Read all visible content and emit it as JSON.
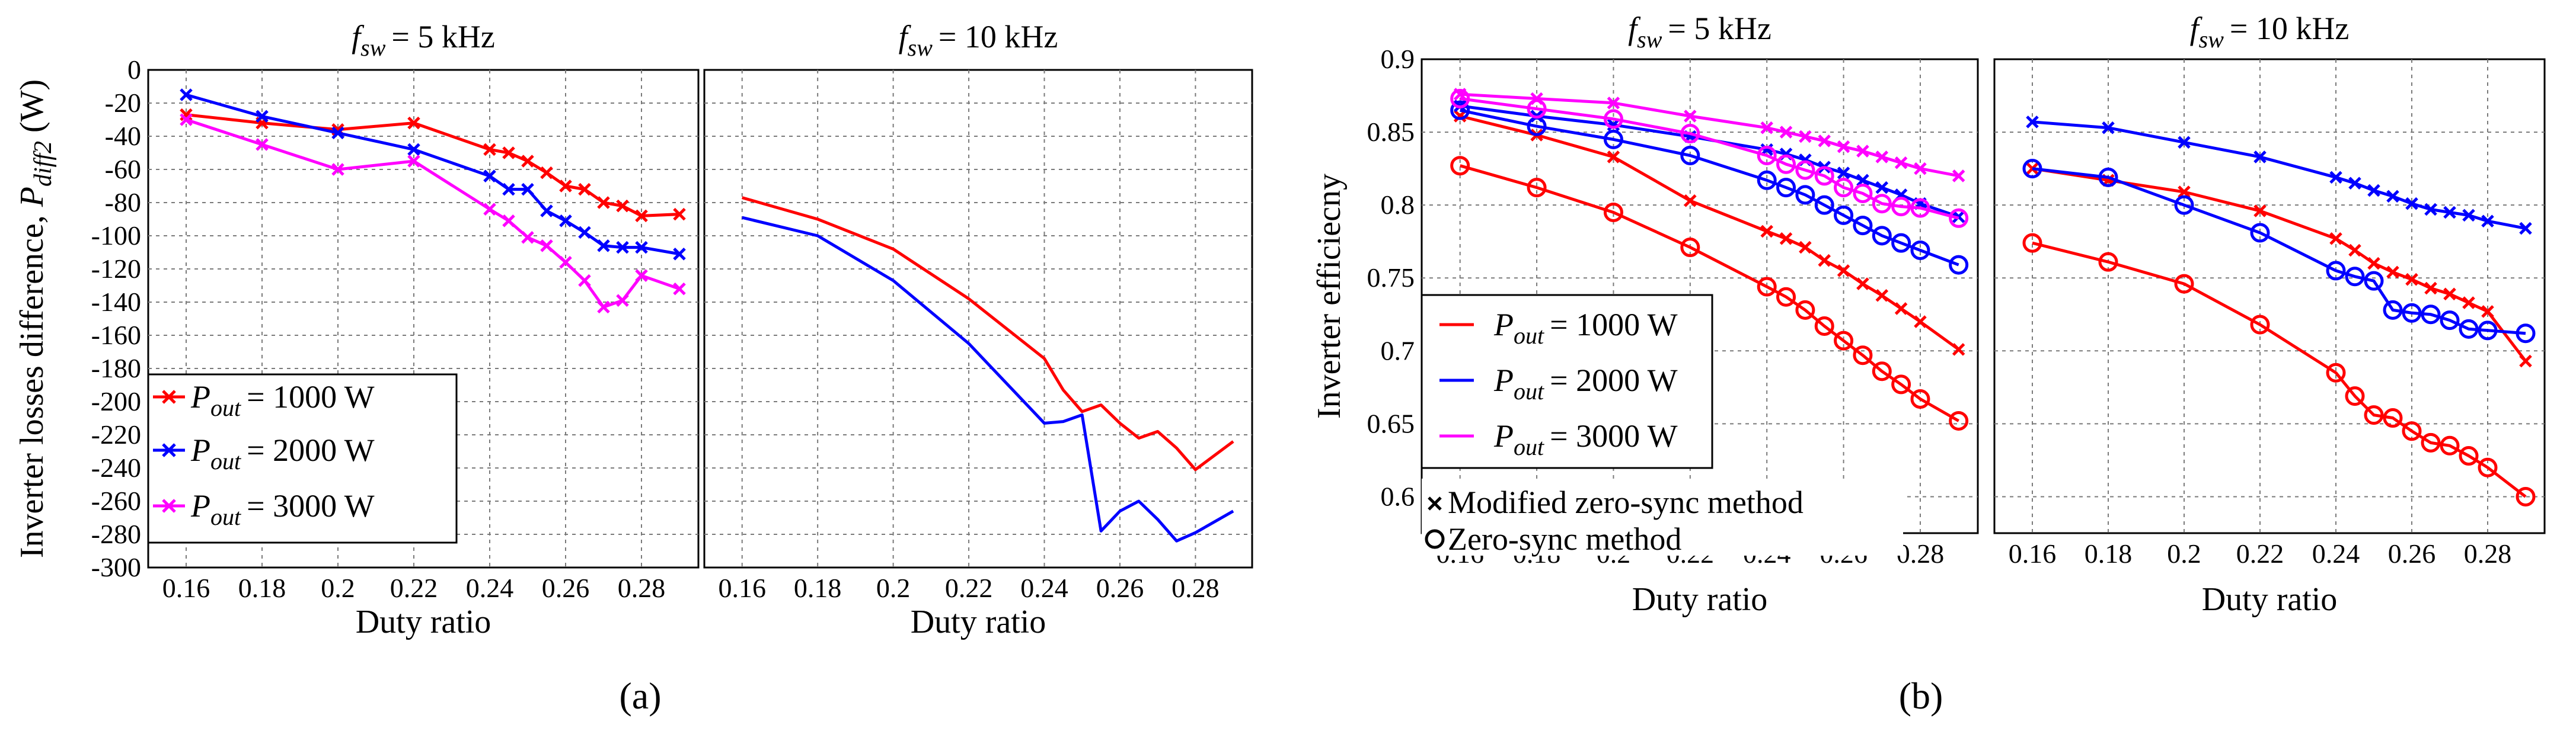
{
  "chart_data": [
    {
      "type": "line",
      "panel": "a",
      "ylabel": "Inverter losses difference, P_diff2 (W)",
      "xlabel": "Duty ratio",
      "xlim": [
        0.15,
        0.295
      ],
      "ylim": [
        -300,
        0
      ],
      "xticks": [
        0.16,
        0.18,
        0.2,
        0.22,
        0.24,
        0.26,
        0.28
      ],
      "xtick_labels": [
        "0.16",
        "0.18",
        "0.2",
        "0.22",
        "0.24",
        "0.26",
        "0.28"
      ],
      "yticks": [
        0,
        -20,
        -40,
        -60,
        -80,
        -100,
        -120,
        -140,
        -160,
        -180,
        -200,
        -220,
        -240,
        -260,
        -280,
        -300
      ],
      "ytick_labels": [
        "0",
        "-20",
        "-40",
        "-60",
        "-80",
        "-100",
        "-120",
        "-140",
        "-160",
        "-180",
        "-200",
        "-220",
        "-240",
        "-260",
        "-280",
        "-300"
      ],
      "subplots": [
        {
          "title": "f_sw = 5 kHz",
          "series": [
            {
              "name": "P_out = 1000 W",
              "color": "#ff0000",
              "marker": "x",
              "x": [
                0.16,
                0.18,
                0.2,
                0.22,
                0.24,
                0.245,
                0.25,
                0.255,
                0.26,
                0.265,
                0.27,
                0.275,
                0.28,
                0.29
              ],
              "y": [
                -27,
                -32,
                -36,
                -32,
                -48,
                -50,
                -55,
                -62,
                -70,
                -72,
                -80,
                -82,
                -88,
                -87
              ]
            },
            {
              "name": "P_out = 2000 W",
              "color": "#0000ff",
              "marker": "x",
              "x": [
                0.16,
                0.18,
                0.2,
                0.22,
                0.24,
                0.245,
                0.25,
                0.255,
                0.26,
                0.265,
                0.27,
                0.275,
                0.28,
                0.29
              ],
              "y": [
                -15,
                -28,
                -38,
                -48,
                -64,
                -72,
                -72,
                -85,
                -91,
                -98,
                -106,
                -107,
                -107,
                -111
              ]
            },
            {
              "name": "P_out = 3000 W",
              "color": "#ff00ff",
              "marker": "x",
              "x": [
                0.16,
                0.18,
                0.2,
                0.22,
                0.24,
                0.245,
                0.25,
                0.255,
                0.26,
                0.265,
                0.27,
                0.275,
                0.28,
                0.29
              ],
              "y": [
                -30,
                -45,
                -60,
                -55,
                -84,
                -91,
                -101,
                -106,
                -116,
                -127,
                -143,
                -139,
                -124,
                -132
              ]
            }
          ]
        },
        {
          "title": "f_sw = 10 kHz",
          "series": [
            {
              "name": "P_out = 1000 W",
              "color": "#ff0000",
              "marker": "none",
              "x": [
                0.16,
                0.18,
                0.2,
                0.22,
                0.24,
                0.245,
                0.25,
                0.255,
                0.26,
                0.265,
                0.27,
                0.275,
                0.28,
                0.29
              ],
              "y": [
                -77,
                -90,
                -108,
                -138,
                -174,
                -193,
                -206,
                -202,
                -213,
                -222,
                -218,
                -228,
                -241,
                -224
              ]
            },
            {
              "name": "P_out = 2000 W",
              "color": "#0000ff",
              "marker": "none",
              "x": [
                0.16,
                0.18,
                0.2,
                0.22,
                0.24,
                0.245,
                0.25,
                0.255,
                0.26,
                0.265,
                0.27,
                0.275,
                0.28,
                0.29
              ],
              "y": [
                -89,
                -100,
                -127,
                -165,
                -213,
                -212,
                -208,
                -278,
                -266,
                -260,
                -271,
                -284,
                -279,
                -266
              ]
            }
          ]
        }
      ],
      "legend": {
        "location": "lower-left",
        "entries": [
          {
            "label": "P_out = 1000 W",
            "color": "#ff0000"
          },
          {
            "label": "P_out = 2000 W",
            "color": "#0000ff"
          },
          {
            "label": "P_out = 3000 W",
            "color": "#ff00ff"
          }
        ]
      }
    },
    {
      "type": "line",
      "panel": "b",
      "ylabel": "Inverter efficiecny",
      "xlabel": "Duty ratio",
      "xlim": [
        0.15,
        0.295
      ],
      "ylim": [
        0.575,
        0.9
      ],
      "xticks": [
        0.16,
        0.18,
        0.2,
        0.22,
        0.24,
        0.26,
        0.28
      ],
      "xtick_labels": [
        "0.16",
        "0.18",
        "0.2",
        "0.22",
        "0.24",
        "0.26",
        "0.28"
      ],
      "yticks": [
        0.9,
        0.85,
        0.8,
        0.75,
        0.7,
        0.65,
        0.6
      ],
      "ytick_labels": [
        "0.9",
        "0.85",
        "0.8",
        "0.75",
        "0.7",
        "0.65",
        "0.6"
      ],
      "subplots": [
        {
          "title": "f_sw = 5 kHz",
          "series": [
            {
              "name": "P_out = 1000 W, Modified zero-sync method",
              "color": "#ff0000",
              "marker": "x",
              "x": [
                0.16,
                0.18,
                0.2,
                0.22,
                0.24,
                0.245,
                0.25,
                0.255,
                0.26,
                0.265,
                0.27,
                0.275,
                0.28,
                0.29
              ],
              "y": [
                0.861,
                0.848,
                0.833,
                0.803,
                0.782,
                0.777,
                0.771,
                0.762,
                0.755,
                0.746,
                0.738,
                0.729,
                0.72,
                0.701
              ]
            },
            {
              "name": "P_out = 1000 W, Zero-sync method",
              "color": "#ff0000",
              "marker": "o",
              "x": [
                0.16,
                0.18,
                0.2,
                0.22,
                0.24,
                0.245,
                0.25,
                0.255,
                0.26,
                0.265,
                0.27,
                0.275,
                0.28,
                0.29
              ],
              "y": [
                0.827,
                0.812,
                0.795,
                0.771,
                0.744,
                0.737,
                0.728,
                0.717,
                0.707,
                0.697,
                0.686,
                0.677,
                0.667,
                0.652
              ]
            },
            {
              "name": "P_out = 2000 W, Modified zero-sync method",
              "color": "#0000ff",
              "marker": "x",
              "x": [
                0.16,
                0.18,
                0.2,
                0.22,
                0.24,
                0.245,
                0.25,
                0.255,
                0.26,
                0.265,
                0.27,
                0.275,
                0.28,
                0.29
              ],
              "y": [
                0.868,
                0.861,
                0.855,
                0.847,
                0.838,
                0.835,
                0.831,
                0.826,
                0.822,
                0.817,
                0.812,
                0.807,
                0.801,
                0.792
              ]
            },
            {
              "name": "P_out = 2000 W, Zero-sync method",
              "color": "#0000ff",
              "marker": "o",
              "x": [
                0.16,
                0.18,
                0.2,
                0.22,
                0.24,
                0.245,
                0.25,
                0.255,
                0.26,
                0.265,
                0.27,
                0.275,
                0.28,
                0.29
              ],
              "y": [
                0.865,
                0.854,
                0.845,
                0.834,
                0.817,
                0.812,
                0.807,
                0.8,
                0.793,
                0.786,
                0.779,
                0.774,
                0.769,
                0.759
              ]
            },
            {
              "name": "P_out = 3000 W, Modified zero-sync method",
              "color": "#ff00ff",
              "marker": "x",
              "x": [
                0.16,
                0.18,
                0.2,
                0.22,
                0.24,
                0.245,
                0.25,
                0.255,
                0.26,
                0.265,
                0.27,
                0.275,
                0.28,
                0.29
              ],
              "y": [
                0.876,
                0.873,
                0.87,
                0.861,
                0.853,
                0.85,
                0.847,
                0.844,
                0.84,
                0.837,
                0.833,
                0.829,
                0.825,
                0.82
              ]
            },
            {
              "name": "P_out = 3000 W, Zero-sync method",
              "color": "#ff00ff",
              "marker": "o",
              "x": [
                0.16,
                0.18,
                0.2,
                0.22,
                0.24,
                0.245,
                0.25,
                0.255,
                0.26,
                0.265,
                0.27,
                0.275,
                0.28,
                0.29
              ],
              "y": [
                0.873,
                0.866,
                0.859,
                0.849,
                0.834,
                0.828,
                0.824,
                0.82,
                0.812,
                0.808,
                0.801,
                0.799,
                0.798,
                0.791
              ]
            }
          ]
        },
        {
          "title": "f_sw = 10 kHz",
          "series": [
            {
              "name": "P_out = 1000 W, Modified zero-sync method",
              "color": "#ff0000",
              "marker": "x",
              "x": [
                0.16,
                0.18,
                0.2,
                0.22,
                0.24,
                0.245,
                0.25,
                0.255,
                0.26,
                0.265,
                0.27,
                0.275,
                0.28,
                0.29
              ],
              "y": [
                0.825,
                0.817,
                0.809,
                0.796,
                0.777,
                0.769,
                0.76,
                0.754,
                0.749,
                0.743,
                0.739,
                0.733,
                0.727,
                0.693
              ]
            },
            {
              "name": "P_out = 1000 W, Zero-sync method",
              "color": "#ff0000",
              "marker": "o",
              "x": [
                0.16,
                0.18,
                0.2,
                0.22,
                0.24,
                0.245,
                0.25,
                0.255,
                0.26,
                0.265,
                0.27,
                0.275,
                0.28,
                0.29
              ],
              "y": [
                0.774,
                0.761,
                0.746,
                0.718,
                0.685,
                0.669,
                0.656,
                0.654,
                0.645,
                0.637,
                0.635,
                0.628,
                0.62,
                0.6
              ]
            },
            {
              "name": "P_out = 2000 W, Modified zero-sync method",
              "color": "#0000ff",
              "marker": "x",
              "x": [
                0.16,
                0.18,
                0.2,
                0.22,
                0.24,
                0.245,
                0.25,
                0.255,
                0.26,
                0.265,
                0.27,
                0.275,
                0.28,
                0.29
              ],
              "y": [
                0.857,
                0.853,
                0.843,
                0.833,
                0.819,
                0.815,
                0.81,
                0.806,
                0.801,
                0.797,
                0.795,
                0.793,
                0.789,
                0.784
              ]
            },
            {
              "name": "P_out = 2000 W, Zero-sync method",
              "color": "#0000ff",
              "marker": "o",
              "x": [
                0.16,
                0.18,
                0.2,
                0.22,
                0.24,
                0.245,
                0.25,
                0.255,
                0.26,
                0.265,
                0.27,
                0.275,
                0.28,
                0.29
              ],
              "y": [
                0.825,
                0.819,
                0.8,
                0.781,
                0.755,
                0.751,
                0.748,
                0.728,
                0.726,
                0.725,
                0.721,
                0.715,
                0.714,
                0.712
              ]
            }
          ]
        }
      ],
      "legend": {
        "location": "lower-left",
        "entries": [
          {
            "label": "P_out = 1000 W",
            "color": "#ff0000"
          },
          {
            "label": "P_out = 2000 W",
            "color": "#0000ff"
          },
          {
            "label": "P_out = 3000 W",
            "color": "#ff00ff"
          }
        ],
        "marker_entries": [
          {
            "label": "Modified zero-sync method",
            "marker": "x"
          },
          {
            "label": "Zero-sync method",
            "marker": "o"
          }
        ]
      }
    }
  ],
  "panel_labels": [
    "(a)",
    "(b)"
  ],
  "subplot_titles": {
    "prefix": "f",
    "subscript": "sw",
    "five": "= 5 kHz",
    "ten": "= 10 kHz"
  },
  "legend_text": {
    "prefix": "P",
    "subscript": "out",
    "e1000": "= 1000 W",
    "e2000": "= 2000 W",
    "e3000": "= 3000 W"
  },
  "ylabel_a": {
    "main": "Inverter losses difference, ",
    "sym": "P",
    "subscript": "diff2",
    "unit": " (W)"
  },
  "ylabel_b": "Inverter efficiecny",
  "xlabel": "Duty ratio",
  "marker_legend": {
    "modified": "Modified zero-sync method",
    "zero": "Zero-sync method"
  }
}
